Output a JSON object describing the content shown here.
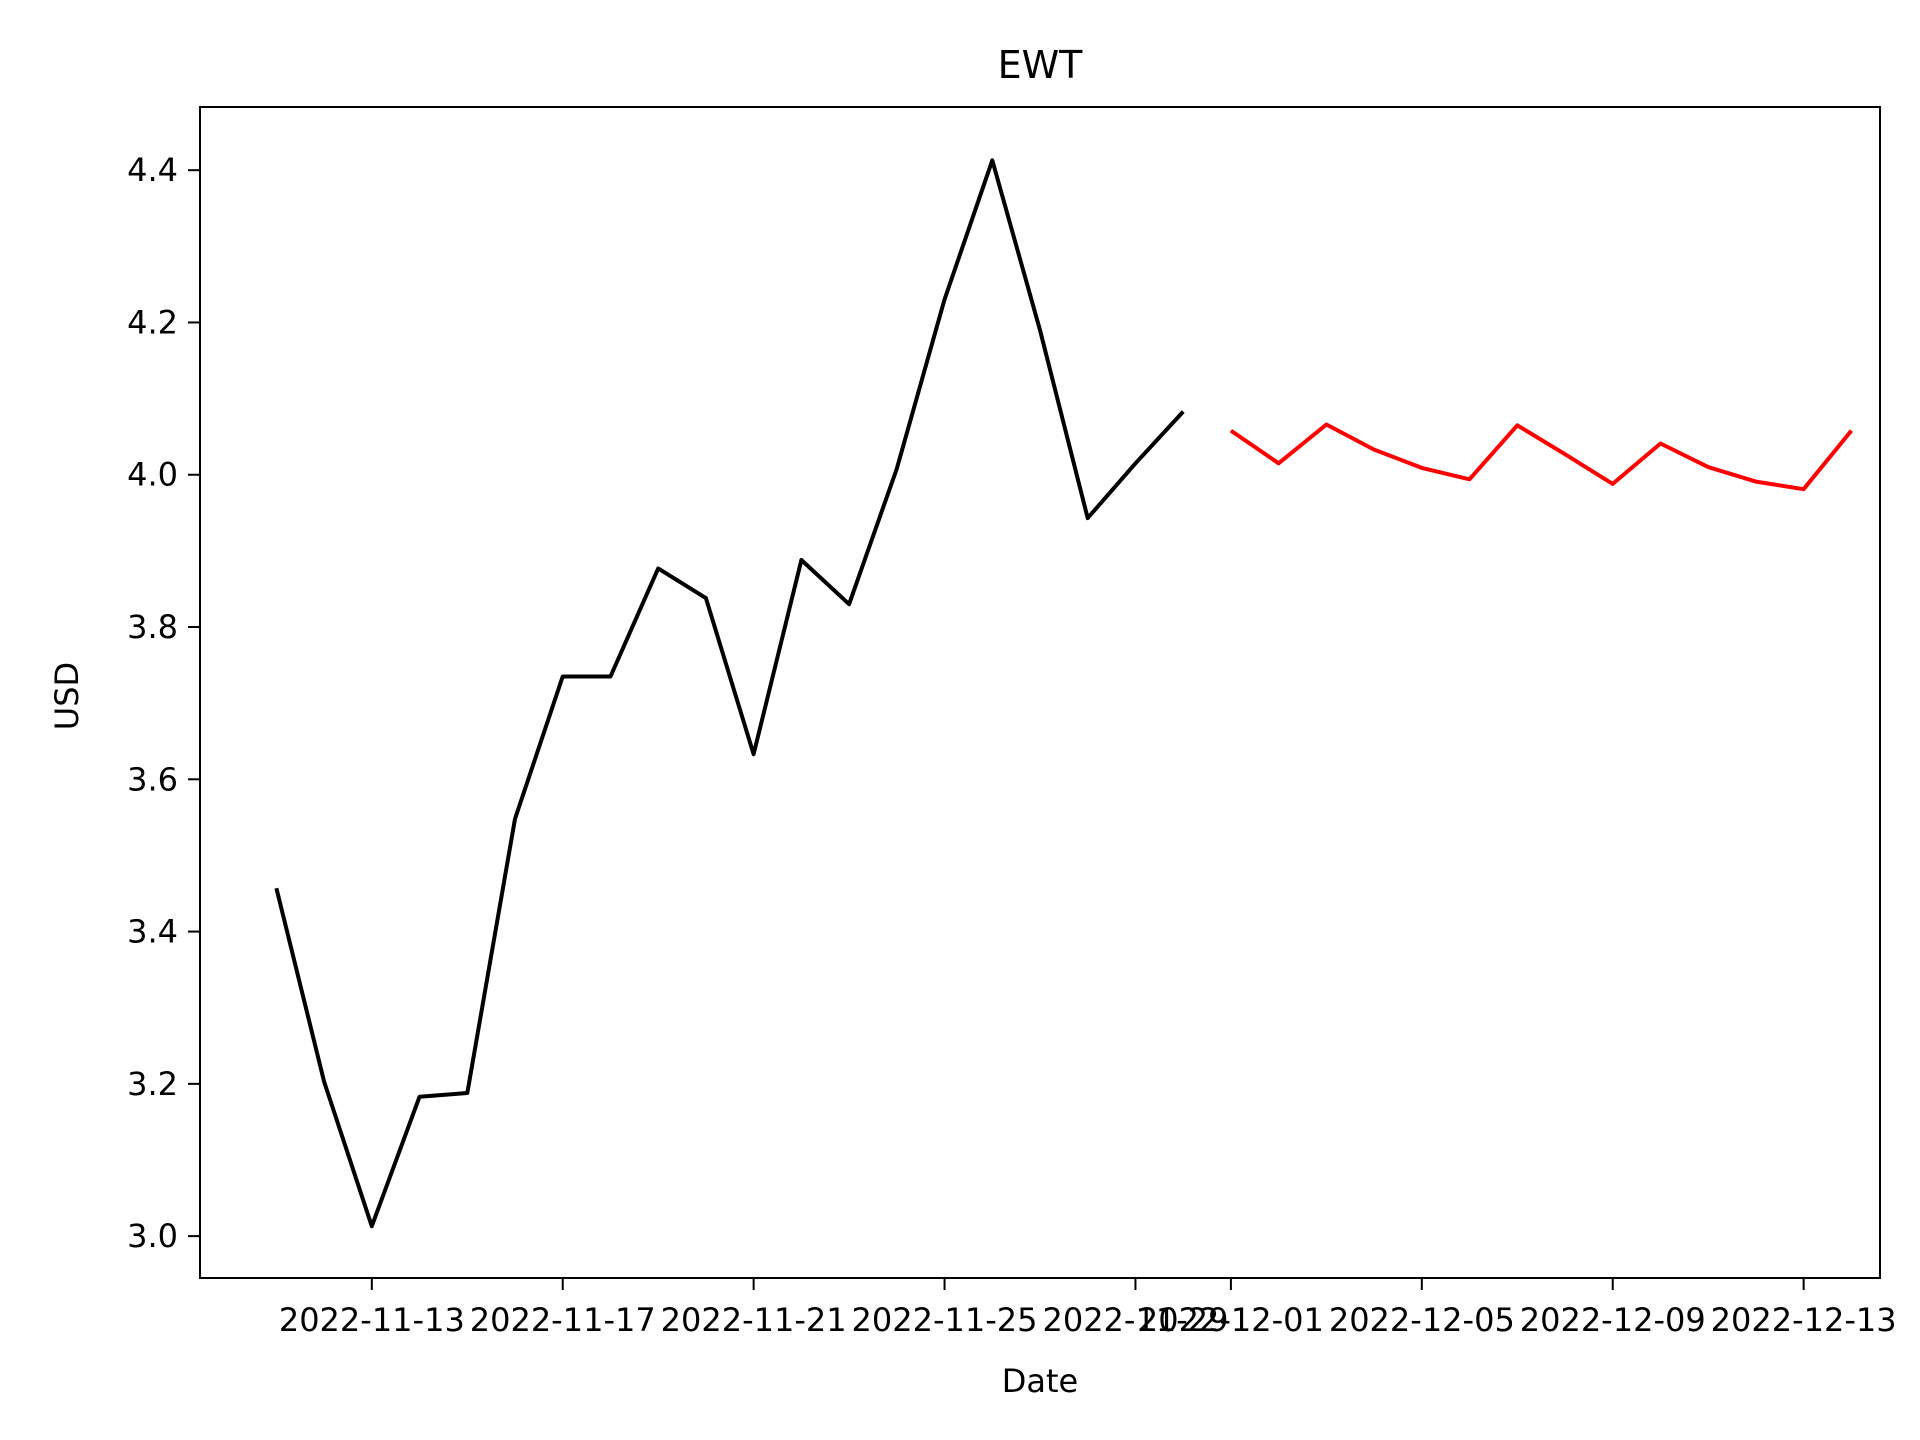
{
  "chart_data": {
    "type": "line",
    "title": "EWT",
    "xlabel": "Date",
    "ylabel": "USD",
    "grid": false,
    "xlim": [
      "2022-11-09T09:36",
      "2022-12-14T14:24"
    ],
    "ylim": [
      2.945,
      4.483
    ],
    "x_ticks": [
      "2022-11-13",
      "2022-11-17",
      "2022-11-21",
      "2022-11-25",
      "2022-11-29",
      "2022-12-01",
      "2022-12-05",
      "2022-12-09",
      "2022-12-13"
    ],
    "y_ticks": [
      "3.0",
      "3.2",
      "3.4",
      "3.6",
      "3.8",
      "4.0",
      "4.2",
      "4.4"
    ],
    "series": [
      {
        "color": "#000000",
        "x": [
          "2022-11-11",
          "2022-11-12",
          "2022-11-13",
          "2022-11-14",
          "2022-11-15",
          "2022-11-16",
          "2022-11-17",
          "2022-11-18",
          "2022-11-19",
          "2022-11-20",
          "2022-11-21",
          "2022-11-22",
          "2022-11-23",
          "2022-11-24",
          "2022-11-25",
          "2022-11-26",
          "2022-11-27",
          "2022-11-28",
          "2022-11-29",
          "2022-11-30"
        ],
        "values": [
          3.457,
          3.203,
          3.013,
          3.183,
          3.188,
          3.548,
          3.735,
          3.735,
          3.877,
          3.838,
          3.633,
          3.888,
          3.83,
          4.008,
          4.23,
          4.413,
          4.19,
          3.943,
          4.015,
          4.083
        ]
      },
      {
        "color": "#ff0000",
        "x": [
          "2022-12-01",
          "2022-12-02",
          "2022-12-03",
          "2022-12-04",
          "2022-12-05",
          "2022-12-06",
          "2022-12-07",
          "2022-12-08",
          "2022-12-09",
          "2022-12-10",
          "2022-12-11",
          "2022-12-12",
          "2022-12-13",
          "2022-12-14"
        ],
        "values": [
          4.058,
          4.015,
          4.066,
          4.033,
          4.009,
          3.994,
          4.065,
          4.027,
          3.988,
          4.041,
          4.01,
          3.991,
          3.981,
          4.058
        ]
      }
    ]
  }
}
